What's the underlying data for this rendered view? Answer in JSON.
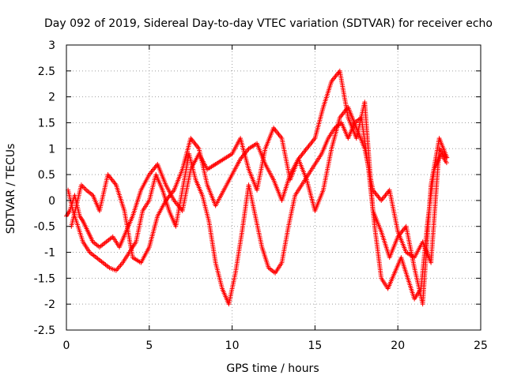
{
  "chart_data": {
    "type": "scatter",
    "title": "Day 092 of 2019, Sidereal Day-to-day VTEC variation (SDTVAR) for receiver echo",
    "xlabel": "GPS time / hours",
    "ylabel": "SDTVAR / TECUs",
    "xlim": [
      0,
      25
    ],
    "ylim": [
      -2.5,
      3
    ],
    "xticks": [
      0,
      5,
      10,
      15,
      20,
      25
    ],
    "xtick_labels": [
      "0",
      "5",
      "10",
      "15",
      "20",
      "25"
    ],
    "yticks": [
      -2.5,
      -2,
      -1.5,
      -1,
      -0.5,
      0,
      0.5,
      1,
      1.5,
      2,
      2.5,
      3
    ],
    "ytick_labels": [
      "-2.5",
      "-2",
      "-1.5",
      "-1",
      "-0.5",
      "0",
      "0.5",
      "1",
      "1.5",
      "2",
      "2.5",
      "3"
    ],
    "grid": true,
    "marker": "+",
    "color": "#ff0000",
    "series": [
      {
        "name": "",
        "points": [
          [
            0.0,
            -0.3
          ],
          [
            0.2,
            -0.2
          ],
          [
            0.5,
            0.1
          ],
          [
            0.8,
            -0.3
          ],
          [
            1.0,
            -0.4
          ],
          [
            1.3,
            -0.6
          ],
          [
            1.6,
            -0.8
          ],
          [
            2.0,
            -0.9
          ],
          [
            2.4,
            -0.8
          ],
          [
            2.8,
            -0.7
          ],
          [
            3.2,
            -0.9
          ],
          [
            3.6,
            -0.6
          ],
          [
            4.0,
            -0.3
          ],
          [
            4.5,
            0.2
          ],
          [
            5.0,
            0.5
          ],
          [
            5.5,
            0.7
          ],
          [
            6.0,
            0.3
          ],
          [
            6.5,
            0.0
          ],
          [
            7.0,
            -0.2
          ],
          [
            7.5,
            0.6
          ],
          [
            8.0,
            0.9
          ],
          [
            8.5,
            0.6
          ],
          [
            9.0,
            0.7
          ],
          [
            9.5,
            0.8
          ],
          [
            10.0,
            0.9
          ],
          [
            10.5,
            1.2
          ],
          [
            11.0,
            0.6
          ],
          [
            11.5,
            0.2
          ],
          [
            12.0,
            1.0
          ],
          [
            12.5,
            1.4
          ],
          [
            13.0,
            1.2
          ],
          [
            13.5,
            0.4
          ],
          [
            14.0,
            0.8
          ],
          [
            14.5,
            1.0
          ],
          [
            15.0,
            1.2
          ],
          [
            15.5,
            1.8
          ],
          [
            16.0,
            2.3
          ],
          [
            16.5,
            2.5
          ],
          [
            17.0,
            1.6
          ],
          [
            17.5,
            1.2
          ],
          [
            18.0,
            1.9
          ],
          [
            18.5,
            -0.2
          ],
          [
            19.0,
            -0.6
          ],
          [
            19.5,
            -1.1
          ],
          [
            20.0,
            -0.7
          ],
          [
            20.5,
            -0.5
          ],
          [
            21.0,
            -1.3
          ],
          [
            21.5,
            -2.0
          ],
          [
            22.0,
            0.3
          ],
          [
            22.5,
            1.2
          ],
          [
            23.0,
            0.8
          ]
        ]
      },
      {
        "name": "",
        "points": [
          [
            0.1,
            0.2
          ],
          [
            0.4,
            -0.2
          ],
          [
            0.7,
            -0.5
          ],
          [
            1.0,
            -0.8
          ],
          [
            1.4,
            -1.0
          ],
          [
            1.8,
            -1.1
          ],
          [
            2.2,
            -1.2
          ],
          [
            2.6,
            -1.3
          ],
          [
            3.0,
            -1.35
          ],
          [
            3.4,
            -1.2
          ],
          [
            3.8,
            -1.0
          ],
          [
            4.2,
            -0.8
          ],
          [
            4.6,
            -0.2
          ],
          [
            5.0,
            0.0
          ],
          [
            5.4,
            0.5
          ],
          [
            5.8,
            0.2
          ],
          [
            6.2,
            -0.2
          ],
          [
            6.6,
            -0.5
          ],
          [
            7.0,
            0.2
          ],
          [
            7.4,
            0.9
          ],
          [
            7.8,
            0.4
          ],
          [
            8.2,
            0.1
          ],
          [
            8.6,
            -0.4
          ],
          [
            9.0,
            -1.2
          ],
          [
            9.4,
            -1.7
          ],
          [
            9.8,
            -2.0
          ],
          [
            10.2,
            -1.4
          ],
          [
            10.6,
            -0.6
          ],
          [
            11.0,
            0.3
          ],
          [
            11.4,
            -0.3
          ],
          [
            11.8,
            -0.9
          ],
          [
            12.2,
            -1.3
          ],
          [
            12.6,
            -1.4
          ],
          [
            13.0,
            -1.2
          ],
          [
            13.4,
            -0.5
          ],
          [
            13.8,
            0.1
          ],
          [
            14.2,
            0.3
          ],
          [
            14.6,
            0.5
          ],
          [
            15.0,
            0.7
          ],
          [
            15.4,
            0.9
          ],
          [
            15.8,
            1.2
          ],
          [
            16.2,
            1.4
          ],
          [
            16.6,
            1.5
          ],
          [
            17.0,
            1.2
          ],
          [
            17.4,
            1.5
          ],
          [
            17.8,
            1.6
          ],
          [
            18.2,
            0.7
          ],
          [
            18.6,
            -0.5
          ],
          [
            19.0,
            -1.5
          ],
          [
            19.4,
            -1.7
          ],
          [
            19.8,
            -1.4
          ],
          [
            20.2,
            -1.1
          ],
          [
            20.6,
            -1.5
          ],
          [
            21.0,
            -1.9
          ],
          [
            21.4,
            -1.7
          ],
          [
            21.8,
            -0.4
          ],
          [
            22.2,
            0.6
          ],
          [
            22.6,
            0.9
          ],
          [
            23.0,
            0.7
          ]
        ]
      },
      {
        "name": "",
        "points": [
          [
            0.3,
            -0.5
          ],
          [
            0.6,
            -0.1
          ],
          [
            0.9,
            0.3
          ],
          [
            1.2,
            0.2
          ],
          [
            1.6,
            0.1
          ],
          [
            2.0,
            -0.2
          ],
          [
            2.5,
            0.5
          ],
          [
            3.0,
            0.3
          ],
          [
            3.5,
            -0.2
          ],
          [
            4.0,
            -1.1
          ],
          [
            4.5,
            -1.2
          ],
          [
            5.0,
            -0.9
          ],
          [
            5.5,
            -0.3
          ],
          [
            6.0,
            0.0
          ],
          [
            6.5,
            0.2
          ],
          [
            7.0,
            0.6
          ],
          [
            7.5,
            1.2
          ],
          [
            8.0,
            1.0
          ],
          [
            8.5,
            0.3
          ],
          [
            9.0,
            -0.1
          ],
          [
            9.5,
            0.2
          ],
          [
            10.0,
            0.5
          ],
          [
            10.5,
            0.8
          ],
          [
            11.0,
            1.0
          ],
          [
            11.5,
            1.1
          ],
          [
            12.0,
            0.7
          ],
          [
            12.5,
            0.4
          ],
          [
            13.0,
            0.0
          ],
          [
            13.5,
            0.5
          ],
          [
            14.0,
            0.8
          ],
          [
            14.5,
            0.4
          ],
          [
            15.0,
            -0.2
          ],
          [
            15.5,
            0.2
          ],
          [
            16.0,
            1.0
          ],
          [
            16.5,
            1.6
          ],
          [
            17.0,
            1.8
          ],
          [
            17.5,
            1.4
          ],
          [
            18.0,
            1.0
          ],
          [
            18.5,
            0.2
          ],
          [
            19.0,
            0.0
          ],
          [
            19.5,
            0.2
          ],
          [
            20.0,
            -0.6
          ],
          [
            20.5,
            -1.0
          ],
          [
            21.0,
            -1.1
          ],
          [
            21.5,
            -0.8
          ],
          [
            22.0,
            -1.2
          ],
          [
            22.5,
            1.0
          ],
          [
            23.0,
            0.8
          ]
        ]
      }
    ]
  }
}
